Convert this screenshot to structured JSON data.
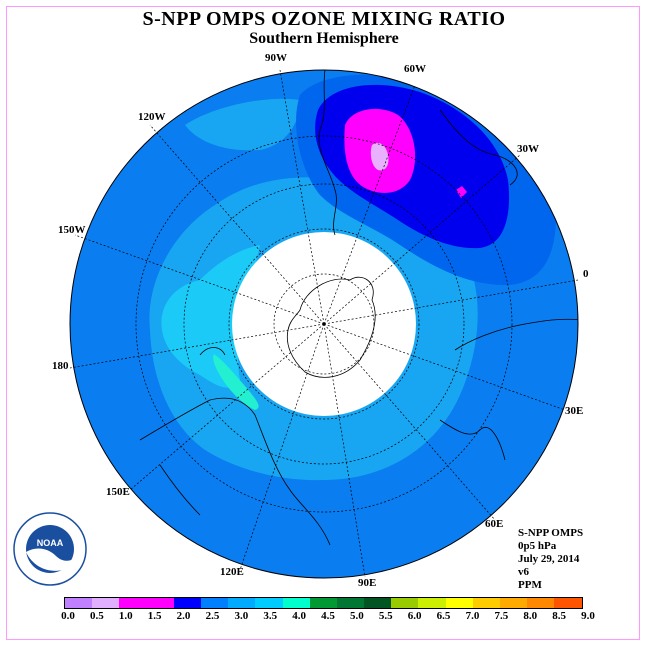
{
  "title": "S-NPP OMPS OZONE MIXING RATIO",
  "subtitle": "Southern Hemisphere",
  "longitude_labels": {
    "lon_90w": "90W",
    "lon_60w": "60W",
    "lon_120w": "120W",
    "lon_30w": "30W",
    "lon_150w": "150W",
    "lon_0": "0",
    "lon_180": "180",
    "lon_30e": "30E",
    "lon_150e": "150E",
    "lon_60e": "60E",
    "lon_120e": "120E",
    "lon_90e": "90E"
  },
  "info": {
    "instrument": "S-NPP OMPS",
    "level": "0p5 hPa",
    "date": "July 29, 2014",
    "version": "v6",
    "units": "PPM"
  },
  "colorbar": {
    "colors": [
      "#c080ff",
      "#e0b0ff",
      "#ff00ff",
      "#ff00ff",
      "#0000ff",
      "#0080ff",
      "#00aaff",
      "#00ccff",
      "#00ffcc",
      "#009933",
      "#007733",
      "#005522",
      "#99cc00",
      "#ccee00",
      "#ffff00",
      "#ffcc00",
      "#ffaa00",
      "#ff8800",
      "#ff5500",
      "#ff0000",
      "#aa6644"
    ],
    "ticks": [
      "0.0",
      "0.5",
      "1.0",
      "1.5",
      "2.0",
      "2.5",
      "3.0",
      "3.5",
      "4.0",
      "4.5",
      "5.0",
      "5.5",
      "6.0",
      "6.5",
      "7.0",
      "7.5",
      "8.0",
      "8.5",
      "9.0"
    ]
  },
  "field_colors": {
    "base": "#0a7df0",
    "light": "#18a6f2",
    "cyan": "#1ccaf8",
    "aqua": "#22f0d0",
    "dark_blue": "#0000ee",
    "mid_blue": "#0066ee",
    "magenta": "#ff00ff",
    "lavender": "#e8b0ff",
    "no_data": "#ffffff"
  }
}
